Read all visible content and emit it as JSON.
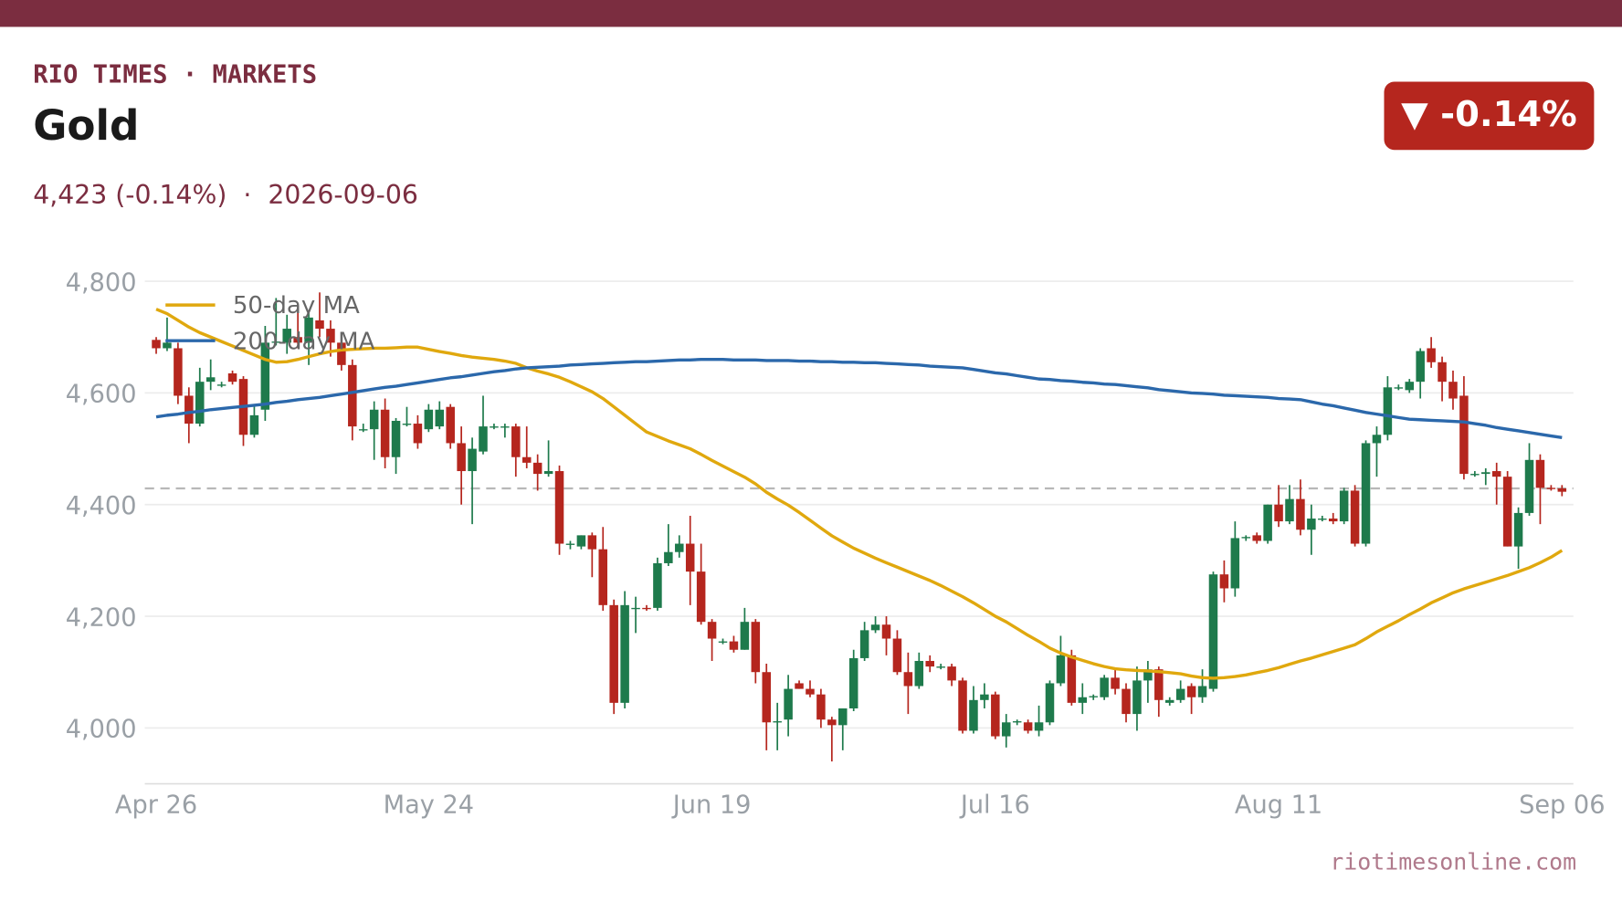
{
  "brand": "RIO TIMES · MARKETS",
  "badge": "▼ -0.14%",
  "source": "riotimesonline.com",
  "chart_data": {
    "type": "candlestick",
    "title": "Gold",
    "subtitle": "4,423 (-0.14%)  ·  2026-09-06",
    "up_color": "#1e7a4c",
    "down_color": "#b5261e",
    "ylim": [
      3900,
      4820
    ],
    "yticks": [
      {
        "value": 4000,
        "label": "4,000"
      },
      {
        "value": 4200,
        "label": "4,200"
      },
      {
        "value": 4400,
        "label": "4,400"
      },
      {
        "value": 4600,
        "label": "4,600"
      },
      {
        "value": 4800,
        "label": "4,800"
      }
    ],
    "grid": true,
    "legend": "upper left",
    "reference_line": 4429,
    "categories": [
      "Apr 26",
      null,
      null,
      null,
      null,
      null,
      null,
      null,
      null,
      null,
      null,
      null,
      null,
      null,
      null,
      null,
      null,
      null,
      null,
      null,
      null,
      null,
      null,
      null,
      null,
      "May 24",
      null,
      null,
      null,
      null,
      null,
      null,
      null,
      null,
      null,
      null,
      null,
      null,
      null,
      null,
      null,
      null,
      null,
      null,
      null,
      null,
      null,
      null,
      null,
      null,
      null,
      "Jun 19",
      null,
      null,
      null,
      null,
      null,
      null,
      null,
      null,
      null,
      null,
      null,
      null,
      null,
      null,
      null,
      null,
      null,
      null,
      null,
      null,
      null,
      null,
      null,
      null,
      null,
      "Jul 16",
      null,
      null,
      null,
      null,
      null,
      null,
      null,
      null,
      null,
      null,
      null,
      null,
      null,
      null,
      null,
      null,
      null,
      null,
      null,
      null,
      null,
      null,
      null,
      null,
      null,
      "Aug 11",
      null,
      null,
      null,
      null,
      null,
      null,
      null,
      null,
      null,
      null,
      null,
      null,
      null,
      null,
      null,
      null,
      null,
      null,
      null,
      null,
      null,
      null,
      null,
      null,
      null,
      "Sep 06"
    ],
    "ohlc": [
      [
        4695,
        4700,
        4670,
        4680
      ],
      [
        4680,
        4735,
        4675,
        4690
      ],
      [
        4680,
        4690,
        4580,
        4595
      ],
      [
        4595,
        4610,
        4510,
        4545
      ],
      [
        4545,
        4645,
        4540,
        4620
      ],
      [
        4620,
        4660,
        4605,
        4628
      ],
      [
        4615,
        4620,
        4610,
        4615
      ],
      [
        4635,
        4640,
        4615,
        4620
      ],
      [
        4625,
        4630,
        4505,
        4525
      ],
      [
        4525,
        4580,
        4520,
        4560
      ],
      [
        4570,
        4720,
        4550,
        4690
      ],
      [
        4690,
        4770,
        4685,
        4692
      ],
      [
        4690,
        4740,
        4670,
        4715
      ],
      [
        4700,
        4760,
        4680,
        4690
      ],
      [
        4690,
        4745,
        4650,
        4735
      ],
      [
        4730,
        4780,
        4700,
        4715
      ],
      [
        4715,
        4730,
        4665,
        4690
      ],
      [
        4690,
        4700,
        4640,
        4650
      ],
      [
        4650,
        4660,
        4515,
        4540
      ],
      [
        4535,
        4545,
        4530,
        4535
      ],
      [
        4535,
        4585,
        4480,
        4570
      ],
      [
        4570,
        4590,
        4465,
        4485
      ],
      [
        4485,
        4555,
        4455,
        4550
      ],
      [
        4545,
        4575,
        4540,
        4545
      ],
      [
        4545,
        4560,
        4500,
        4510
      ],
      [
        4535,
        4580,
        4530,
        4570
      ],
      [
        4540,
        4585,
        4535,
        4570
      ],
      [
        4575,
        4580,
        4500,
        4510
      ],
      [
        4510,
        4540,
        4400,
        4460
      ],
      [
        4460,
        4520,
        4365,
        4500
      ],
      [
        4495,
        4595,
        4490,
        4540
      ],
      [
        4540,
        4545,
        4535,
        4540
      ],
      [
        4540,
        4545,
        4520,
        4540
      ],
      [
        4540,
        4545,
        4450,
        4485
      ],
      [
        4485,
        4540,
        4465,
        4475
      ],
      [
        4475,
        4490,
        4425,
        4455
      ],
      [
        4455,
        4515,
        4450,
        4460
      ],
      [
        4460,
        4470,
        4310,
        4330
      ],
      [
        4330,
        4335,
        4320,
        4330
      ],
      [
        4325,
        4345,
        4320,
        4345
      ],
      [
        4345,
        4350,
        4270,
        4320
      ],
      [
        4320,
        4360,
        4210,
        4220
      ],
      [
        4220,
        4230,
        4025,
        4045
      ],
      [
        4045,
        4245,
        4035,
        4220
      ],
      [
        4215,
        4235,
        4170,
        4215
      ],
      [
        4215,
        4220,
        4210,
        4213
      ],
      [
        4215,
        4305,
        4210,
        4295
      ],
      [
        4295,
        4365,
        4290,
        4315
      ],
      [
        4315,
        4345,
        4305,
        4330
      ],
      [
        4330,
        4380,
        4220,
        4280
      ],
      [
        4280,
        4330,
        4185,
        4190
      ],
      [
        4190,
        4195,
        4120,
        4160
      ],
      [
        4155,
        4160,
        4150,
        4155
      ],
      [
        4155,
        4165,
        4135,
        4140
      ],
      [
        4140,
        4215,
        4140,
        4190
      ],
      [
        4190,
        4195,
        4080,
        4100
      ],
      [
        4100,
        4115,
        3960,
        4010
      ],
      [
        4010,
        4045,
        3960,
        4012
      ],
      [
        4015,
        4095,
        3985,
        4070
      ],
      [
        4080,
        4085,
        4070,
        4070
      ],
      [
        4070,
        4085,
        4055,
        4060
      ],
      [
        4060,
        4070,
        4000,
        4015
      ],
      [
        4015,
        4020,
        3940,
        4005
      ],
      [
        4005,
        4035,
        3960,
        4035
      ],
      [
        4035,
        4140,
        4030,
        4125
      ],
      [
        4125,
        4190,
        4120,
        4175
      ],
      [
        4175,
        4200,
        4170,
        4185
      ],
      [
        4185,
        4200,
        4130,
        4160
      ],
      [
        4160,
        4175,
        4095,
        4100
      ],
      [
        4100,
        4135,
        4025,
        4075
      ],
      [
        4075,
        4135,
        4070,
        4120
      ],
      [
        4120,
        4130,
        4100,
        4110
      ],
      [
        4110,
        4115,
        4105,
        4110
      ],
      [
        4110,
        4115,
        4075,
        4085
      ],
      [
        4085,
        4090,
        3990,
        3995
      ],
      [
        3995,
        4075,
        3990,
        4050
      ],
      [
        4050,
        4080,
        4035,
        4060
      ],
      [
        4060,
        4065,
        3980,
        3985
      ],
      [
        3985,
        4025,
        3965,
        4010
      ],
      [
        4010,
        4015,
        4005,
        4012
      ],
      [
        4010,
        4015,
        3990,
        3995
      ],
      [
        3995,
        4040,
        3985,
        4010
      ],
      [
        4010,
        4085,
        4005,
        4080
      ],
      [
        4080,
        4165,
        4075,
        4130
      ],
      [
        4130,
        4140,
        4040,
        4045
      ],
      [
        4045,
        4080,
        4025,
        4055
      ],
      [
        4055,
        4060,
        4050,
        4057
      ],
      [
        4055,
        4095,
        4050,
        4090
      ],
      [
        4090,
        4105,
        4060,
        4070
      ],
      [
        4070,
        4080,
        4010,
        4025
      ],
      [
        4025,
        4110,
        3995,
        4085
      ],
      [
        4085,
        4120,
        4045,
        4105
      ],
      [
        4105,
        4110,
        4020,
        4050
      ],
      [
        4045,
        4055,
        4040,
        4050
      ],
      [
        4050,
        4085,
        4045,
        4070
      ],
      [
        4075,
        4080,
        4025,
        4055
      ],
      [
        4055,
        4105,
        4045,
        4075
      ],
      [
        4070,
        4280,
        4065,
        4275
      ],
      [
        4275,
        4300,
        4225,
        4250
      ],
      [
        4250,
        4370,
        4235,
        4340
      ],
      [
        4340,
        4345,
        4335,
        4342
      ],
      [
        4345,
        4350,
        4330,
        4335
      ],
      [
        4335,
        4400,
        4330,
        4400
      ],
      [
        4400,
        4435,
        4360,
        4370
      ],
      [
        4370,
        4435,
        4365,
        4410
      ],
      [
        4410,
        4445,
        4345,
        4355
      ],
      [
        4355,
        4400,
        4310,
        4375
      ],
      [
        4375,
        4380,
        4370,
        4375
      ],
      [
        4375,
        4385,
        4365,
        4370
      ],
      [
        4370,
        4430,
        4365,
        4425
      ],
      [
        4425,
        4435,
        4325,
        4330
      ],
      [
        4330,
        4515,
        4325,
        4510
      ],
      [
        4510,
        4540,
        4450,
        4525
      ],
      [
        4525,
        4630,
        4515,
        4610
      ],
      [
        4610,
        4615,
        4605,
        4610
      ],
      [
        4605,
        4625,
        4600,
        4620
      ],
      [
        4620,
        4680,
        4590,
        4675
      ],
      [
        4680,
        4700,
        4645,
        4655
      ],
      [
        4655,
        4665,
        4585,
        4620
      ],
      [
        4620,
        4640,
        4570,
        4590
      ],
      [
        4595,
        4630,
        4445,
        4455
      ],
      [
        4455,
        4460,
        4450,
        4455
      ],
      [
        4455,
        4465,
        4435,
        4458
      ],
      [
        4460,
        4475,
        4400,
        4450
      ],
      [
        4450,
        4460,
        4325,
        4325
      ],
      [
        4325,
        4395,
        4285,
        4385
      ],
      [
        4385,
        4510,
        4380,
        4480
      ],
      [
        4480,
        4490,
        4365,
        4430
      ],
      [
        4430,
        4435,
        4425,
        4429
      ],
      [
        4429,
        4435,
        4415,
        4423
      ]
    ],
    "series": [
      {
        "name": "50-day MA",
        "color": "#e0a80e",
        "values": [
          4750,
          4742,
          4730,
          4718,
          4708,
          4700,
          4692,
          4684,
          4676,
          4668,
          4660,
          4655,
          4656,
          4660,
          4665,
          4670,
          4674,
          4677,
          4678,
          4679,
          4680,
          4680,
          4681,
          4682,
          4682,
          4678,
          4674,
          4671,
          4667,
          4664,
          4662,
          4660,
          4657,
          4653,
          4645,
          4639,
          4634,
          4628,
          4620,
          4611,
          4602,
          4590,
          4575,
          4560,
          4545,
          4530,
          4522,
          4514,
          4507,
          4500,
          4490,
          4479,
          4469,
          4459,
          4449,
          4437,
          4422,
          4410,
          4399,
          4386,
          4372,
          4358,
          4344,
          4333,
          4322,
          4313,
          4304,
          4296,
          4288,
          4280,
          4272,
          4264,
          4255,
          4245,
          4235,
          4224,
          4212,
          4200,
          4190,
          4178,
          4166,
          4155,
          4143,
          4134,
          4127,
          4121,
          4115,
          4110,
          4106,
          4104,
          4103,
          4102,
          4101,
          4099,
          4097,
          4093,
          4090,
          4089,
          4090,
          4092,
          4095,
          4099,
          4103,
          4108,
          4114,
          4120,
          4125,
          4131,
          4137,
          4143,
          4149,
          4160,
          4172,
          4182,
          4192,
          4203,
          4213,
          4224,
          4233,
          4242,
          4249,
          4255,
          4261,
          4267,
          4273,
          4280,
          4287,
          4296,
          4306,
          4318
        ]
      },
      {
        "name": "200-day MA",
        "color": "#2b68ab",
        "values": [
          4557,
          4560,
          4562,
          4565,
          4567,
          4570,
          4572,
          4574,
          4576,
          4578,
          4580,
          4583,
          4585,
          4588,
          4590,
          4592,
          4595,
          4598,
          4601,
          4604,
          4607,
          4610,
          4612,
          4615,
          4618,
          4621,
          4624,
          4627,
          4629,
          4632,
          4635,
          4638,
          4640,
          4643,
          4645,
          4646,
          4647,
          4648,
          4650,
          4651,
          4652,
          4653,
          4654,
          4655,
          4656,
          4656,
          4657,
          4658,
          4659,
          4659,
          4660,
          4660,
          4660,
          4659,
          4659,
          4659,
          4658,
          4658,
          4658,
          4657,
          4657,
          4656,
          4656,
          4655,
          4655,
          4654,
          4654,
          4653,
          4652,
          4651,
          4650,
          4648,
          4647,
          4646,
          4645,
          4642,
          4639,
          4636,
          4634,
          4631,
          4628,
          4625,
          4624,
          4622,
          4621,
          4619,
          4618,
          4616,
          4615,
          4613,
          4611,
          4609,
          4606,
          4604,
          4602,
          4600,
          4599,
          4598,
          4596,
          4595,
          4594,
          4593,
          4592,
          4590,
          4589,
          4588,
          4584,
          4580,
          4577,
          4573,
          4569,
          4565,
          4562,
          4559,
          4556,
          4553,
          4552,
          4551,
          4550,
          4549,
          4548,
          4545,
          4542,
          4538,
          4535,
          4532,
          4529,
          4526,
          4523,
          4520
        ]
      }
    ]
  }
}
